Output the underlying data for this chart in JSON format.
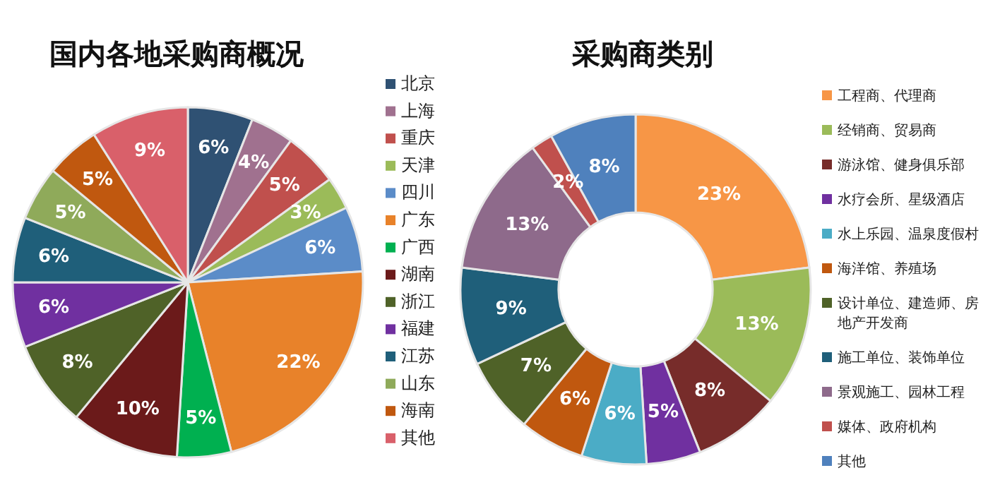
{
  "chart_data": [
    {
      "type": "pie",
      "title": "国内各地采购商概况",
      "legend": "right",
      "categories": [
        "北京",
        "上海",
        "重庆",
        "天津",
        "四川",
        "广东",
        "广西",
        "湖南",
        "浙江",
        "福建",
        "江苏",
        "山东",
        "海南",
        "其他"
      ],
      "values": [
        6,
        4,
        5,
        3,
        6,
        22,
        5,
        10,
        8,
        6,
        6,
        5,
        5,
        9
      ],
      "value_labels": [
        "6%",
        "4%",
        "5%",
        "3%",
        "6%",
        "22%",
        "5%",
        "10%",
        "8%",
        "6%",
        "6%",
        "5%",
        "5%",
        "9%"
      ],
      "colors": [
        "#2f5173",
        "#a0718f",
        "#c0504d",
        "#9bbb59",
        "#5b8cc8",
        "#e8822a",
        "#00b050",
        "#6b1a1a",
        "#4f6228",
        "#7030a0",
        "#1f5f7a",
        "#8faa5a",
        "#c0580f",
        "#d9606a"
      ]
    },
    {
      "type": "donut",
      "title": "采购商类别",
      "legend": "right",
      "categories": [
        "工程商、代理商",
        "经销商、贸易商",
        "游泳馆、健身俱乐部",
        "水疗会所、星级酒店",
        "水上乐园、温泉度假村",
        "海洋馆、养殖场",
        "设计单位、建造师、房地产开发商",
        "施工单位、装饰单位",
        "景观施工、园林工程",
        "媒体、政府机构",
        "其他"
      ],
      "values": [
        23,
        13,
        8,
        5,
        6,
        6,
        7,
        9,
        13,
        2,
        8
      ],
      "value_labels": [
        "23%",
        "13%",
        "8%",
        "5%",
        "6%",
        "6%",
        "7%",
        "9%",
        "13%",
        "2%",
        "8%"
      ],
      "colors": [
        "#f79646",
        "#9bbb59",
        "#772c2a",
        "#7030a0",
        "#4bacc6",
        "#c0580f",
        "#4f6228",
        "#1f5f7a",
        "#8e6a8b",
        "#c0504d",
        "#4f81bd"
      ]
    }
  ]
}
